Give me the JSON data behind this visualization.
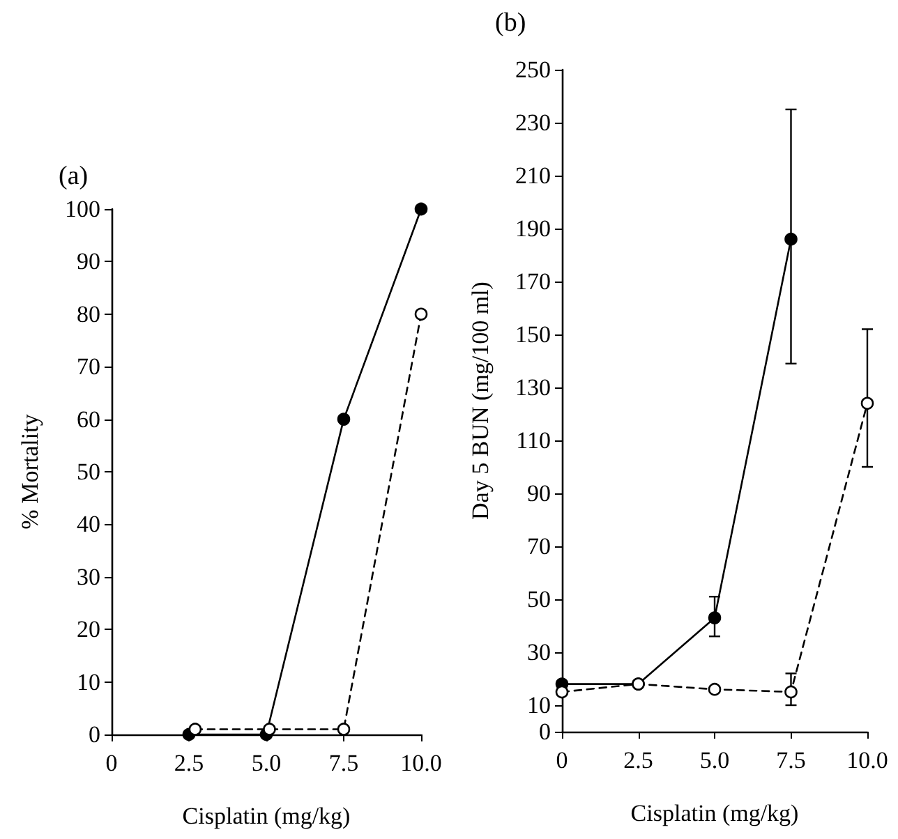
{
  "chart_data": [
    {
      "type": "line",
      "title": "(a)",
      "xlabel": "Cisplatin (mg/kg)",
      "ylabel": "% Mortality",
      "xlim": [
        0,
        10
      ],
      "ylim": [
        0,
        100
      ],
      "xticks": [
        0,
        {
          "value": 2.5,
          "label": "2.5"
        },
        {
          "value": 5,
          "label": "5.0"
        },
        {
          "value": 7.5,
          "label": "7.5"
        },
        {
          "value": 10,
          "label": "10.0"
        }
      ],
      "yticks": [
        0,
        10,
        20,
        30,
        40,
        50,
        60,
        70,
        80,
        90,
        100
      ],
      "grid": false,
      "series": [
        {
          "x": [
            2.5,
            5,
            7.5,
            10
          ],
          "values": [
            0,
            0,
            60,
            100
          ],
          "color": "#000000",
          "marker": "circle",
          "line_style": "solid"
        },
        {
          "x": [
            2.7,
            5.1,
            7.5,
            10
          ],
          "values": [
            1,
            1,
            1,
            80
          ],
          "color": "#000000",
          "marker": "circle",
          "line_style": "dashed"
        }
      ]
    },
    {
      "type": "line",
      "title": "(b)",
      "xlabel": "Cisplatin (mg/kg)",
      "ylabel": "Day 5 BUN (mg/100 ml)",
      "xlim": [
        0,
        10
      ],
      "ylim": [
        0,
        250
      ],
      "xticks": [
        0,
        {
          "value": 2.5,
          "label": "2.5"
        },
        {
          "value": 5,
          "label": "5.0"
        },
        {
          "value": 7.5,
          "label": "7.5"
        },
        {
          "value": 10,
          "label": "10.0"
        }
      ],
      "yticks": [
        0,
        10,
        30,
        50,
        70,
        90,
        110,
        130,
        150,
        170,
        190,
        210,
        230,
        250
      ],
      "grid": false,
      "series": [
        {
          "x": [
            0,
            2.5,
            5,
            7.5
          ],
          "values": [
            18,
            18,
            43,
            186
          ],
          "errors": [
            null,
            null,
            [
              36,
              51
            ],
            [
              139,
              235
            ]
          ],
          "color": "#000000",
          "marker": "circle",
          "line_style": "solid"
        },
        {
          "x": [
            0,
            2.5,
            5,
            7.5,
            10
          ],
          "values": [
            15,
            18,
            16,
            15,
            124
          ],
          "errors": [
            null,
            null,
            null,
            [
              10,
              22
            ],
            [
              100,
              152
            ]
          ],
          "color": "#000000",
          "marker": "circle",
          "line_style": "dashed"
        }
      ]
    }
  ]
}
